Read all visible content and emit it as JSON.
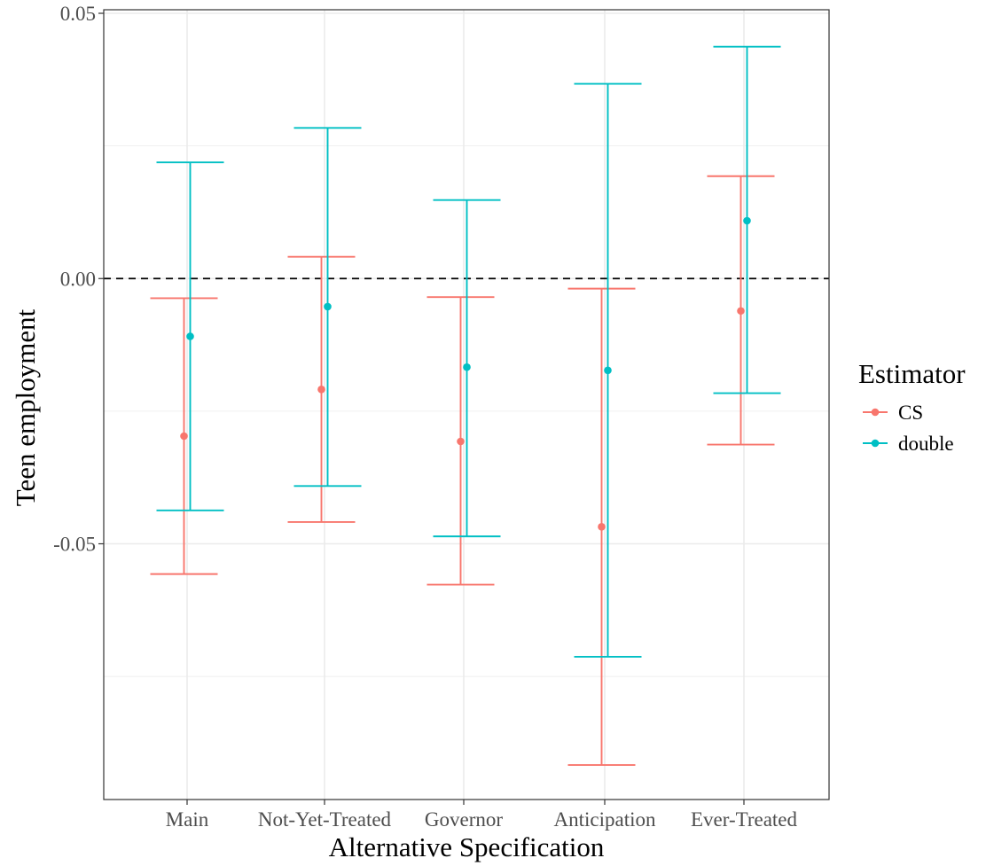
{
  "chart_data": {
    "type": "errorbar",
    "xlabel": "Alternative Specification",
    "ylabel": "Teen employment",
    "categories": [
      "Main",
      "Not-Yet-Treated",
      "Governor",
      "Anticipation",
      "Ever-Treated"
    ],
    "yticks": [
      0.05,
      0.0,
      -0.05
    ],
    "ytick_labels": [
      "0.05",
      "0.00",
      "-0.05"
    ],
    "ylim": [
      -0.098,
      0.05
    ],
    "reference_line": 0.0,
    "grid": true,
    "legend": {
      "title": "Estimator",
      "position": "right"
    },
    "series": [
      {
        "name": "CS",
        "color": "#F8766D",
        "estimate": [
          -0.0297,
          -0.0209,
          -0.0307,
          -0.0468,
          -0.0061
        ],
        "lower": [
          -0.0557,
          -0.0459,
          -0.0577,
          -0.0917,
          -0.0313
        ],
        "upper": [
          -0.0037,
          0.0041,
          -0.0035,
          -0.0019,
          0.0193
        ]
      },
      {
        "name": "double",
        "color": "#00BFC4",
        "estimate": [
          -0.0109,
          -0.0053,
          -0.0167,
          -0.0173,
          0.0109
        ],
        "lower": [
          -0.0437,
          -0.0391,
          -0.0486,
          -0.0713,
          -0.0216
        ],
        "upper": [
          0.0219,
          0.0284,
          0.0148,
          0.0367,
          0.0437
        ]
      }
    ]
  }
}
